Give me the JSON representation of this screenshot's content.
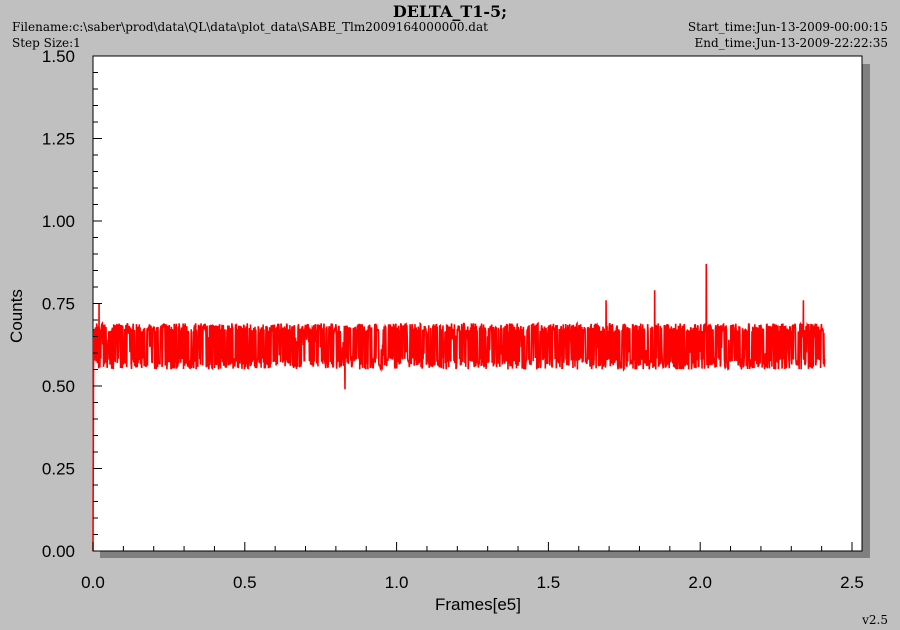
{
  "header": {
    "filename": "Filename:c:\\saber\\prod\\data\\QL\\data\\plot_data\\SABE_Tlm2009164000000.dat",
    "step_size": "Step Size:1",
    "start_time": "Start_time:Jun-13-2009-00:00:15",
    "end_time": "End_time:Jun-13-2009-22:22:35",
    "version": "v2.5"
  },
  "colors": {
    "background": "#c0c0c0",
    "plot_area": "#ffffff",
    "series": "#ff0000",
    "shadow": "#808080"
  },
  "chart_data": {
    "type": "line",
    "title": "DELTA_T1-5;",
    "xlabel": "Frames[e5]",
    "ylabel": "Counts",
    "xlim": [
      0,
      2.5
    ],
    "ylim": [
      0,
      1.5
    ],
    "x_ticks": [
      "0.0",
      "0.5",
      "1.0",
      "1.5",
      "2.0",
      "2.5"
    ],
    "y_ticks": [
      "0.00",
      "0.25",
      "0.50",
      "0.75",
      "1.00",
      "1.25",
      "1.50"
    ],
    "grid": false,
    "legend": "none",
    "series": [
      {
        "color": "#ff0000",
        "x_range": [
          0,
          2.41
        ],
        "baseline": 0.64,
        "typical_band": [
          0.55,
          0.69
        ],
        "initial_point": {
          "x": 0.0,
          "y": 0.0
        },
        "spikes": [
          {
            "x": 0.02,
            "y": 0.75
          },
          {
            "x": 0.83,
            "y": 0.49
          },
          {
            "x": 1.69,
            "y": 0.76
          },
          {
            "x": 1.85,
            "y": 0.79
          },
          {
            "x": 2.02,
            "y": 0.87
          },
          {
            "x": 2.34,
            "y": 0.76
          }
        ]
      }
    ]
  }
}
